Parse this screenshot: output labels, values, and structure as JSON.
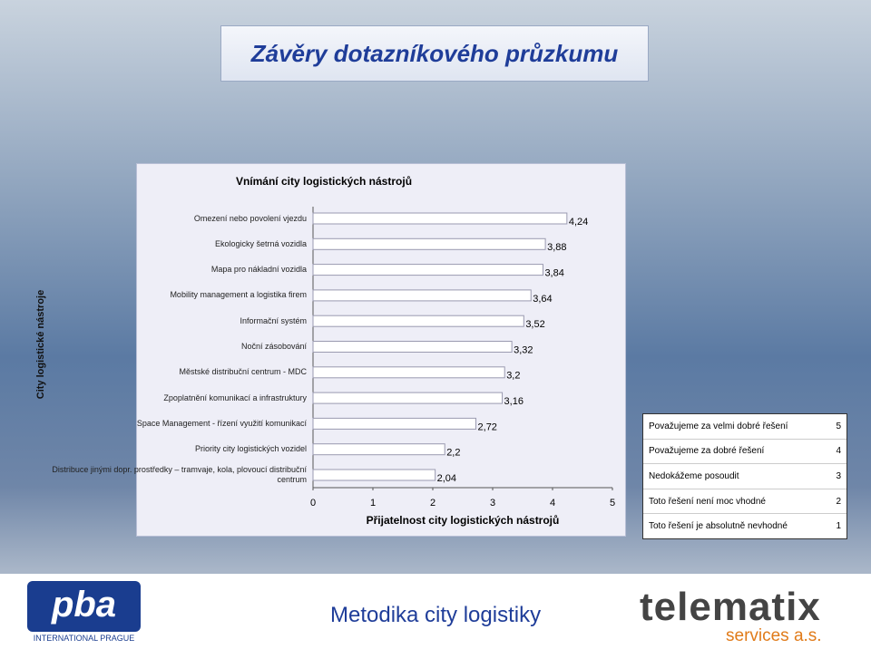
{
  "slide_title": "Závěry dotazníkového průzkumu",
  "chart_data": {
    "type": "hbar",
    "title": "Vnímání city logistických nástrojů",
    "x_label": "Přijatelnost city logistických nástrojů",
    "y_label": "City logistické nástroje",
    "categories": [
      "Omezení nebo povolení vjezdu",
      "Ekologicky šetrná vozidla",
      "Mapa pro nákladní vozidla",
      "Mobility management a logistika firem",
      "Informační systém",
      "Noční zásobování",
      "Městské distribuční centrum - MDC",
      "Zpoplatnění komunikací a infrastruktury",
      "Space Management - řízení využití komunikací",
      "Priority city logistických vozidel",
      "Distribuce jinými dopr. prostředky – tramvaje, kola, plovoucí distribuční centrum"
    ],
    "values": [
      4.24,
      3.88,
      3.84,
      3.64,
      3.52,
      3.32,
      3.2,
      3.16,
      2.72,
      2.2,
      2.04
    ],
    "value_labels": [
      "4,24",
      "3,88",
      "3,84",
      "3,64",
      "3,52",
      "3,32",
      "3,2",
      "3,16",
      "2,72",
      "2,2",
      "2,04"
    ],
    "color": "#ffffff",
    "xlim": [
      0,
      5
    ],
    "xticks": [
      0,
      1,
      2,
      3,
      4,
      5
    ]
  },
  "legend_table": {
    "rows": [
      {
        "label": "Považujeme za velmi dobré řešení",
        "value": 5
      },
      {
        "label": "Považujeme za dobré řešení",
        "value": 4
      },
      {
        "label": "Nedokážeme posoudit",
        "value": 3
      },
      {
        "label": "Toto řešení není moc vhodné",
        "value": 2
      },
      {
        "label": "Toto řešení je absolutně nevhodné",
        "value": 1
      }
    ]
  },
  "footer": {
    "left_logo": "pba",
    "left_logo_sub": "INTERNATIONAL PRAGUE",
    "center": "Metodika city logistiky",
    "right_logo": "telematix",
    "right_logo_sub": "services a.s."
  }
}
